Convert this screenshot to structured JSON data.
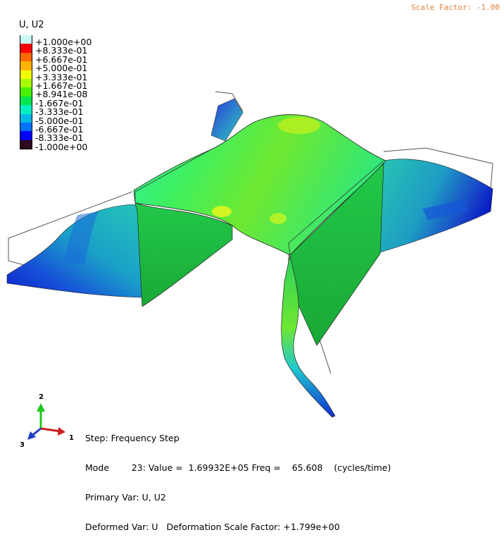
{
  "header": {
    "scale_factor": "Scale Factor: -1.00"
  },
  "legend": {
    "title": "U, U2",
    "levels": [
      {
        "label": "+1.000e+00",
        "color": "#c8fbf3"
      },
      {
        "label": "+8.333e-01",
        "color": "#ff0000"
      },
      {
        "label": "+6.667e-01",
        "color": "#ff6a00"
      },
      {
        "label": "+5.000e-01",
        "color": "#ffb400"
      },
      {
        "label": "+3.333e-01",
        "color": "#f0ff00"
      },
      {
        "label": "+1.667e-01",
        "color": "#a8ff00"
      },
      {
        "label": "+8.941e-08",
        "color": "#46f000"
      },
      {
        "label": "-1.667e-01",
        "color": "#00e650"
      },
      {
        "label": "-3.333e-01",
        "color": "#00f0c0"
      },
      {
        "label": "-5.000e-01",
        "color": "#00b8e6"
      },
      {
        "label": "-6.667e-01",
        "color": "#0072ff"
      },
      {
        "label": "-8.333e-01",
        "color": "#0000ff"
      },
      {
        "label": "-1.000e+00",
        "color": "#2d0a1e"
      }
    ]
  },
  "triad": {
    "axis_2": "2",
    "axis_1": "1",
    "axis_3": "3"
  },
  "info": {
    "line1": "Step: Frequency Step",
    "line2": "Mode        23: Value =  1.69932E+05 Freq =    65.608    (cycles/time)",
    "line3": "Primary Var: U, U2",
    "line4": "Deformed Var: U   Deformation Scale Factor: +1.799e+00"
  }
}
